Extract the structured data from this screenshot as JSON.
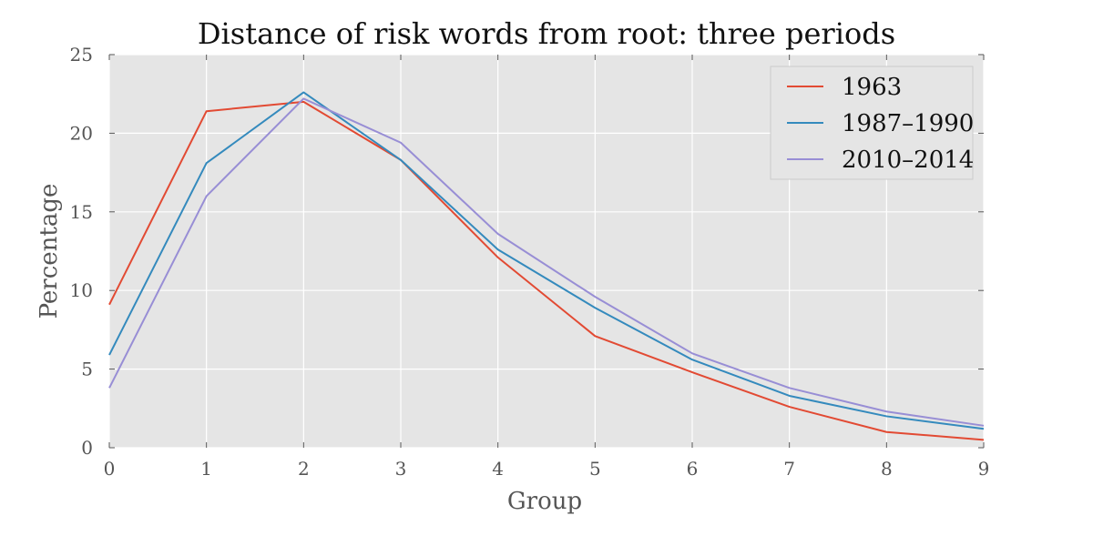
{
  "chart_data": {
    "type": "line",
    "title": "Distance of risk words from root: three periods",
    "xlabel": "Group",
    "ylabel": "Percentage",
    "x": [
      0,
      1,
      2,
      3,
      4,
      5,
      6,
      7,
      8,
      9
    ],
    "xlim": [
      0,
      9
    ],
    "ylim": [
      0,
      25
    ],
    "x_ticks": [
      "0",
      "1",
      "2",
      "3",
      "4",
      "5",
      "6",
      "7",
      "8",
      "9"
    ],
    "y_ticks": [
      "0",
      "5",
      "10",
      "15",
      "20",
      "25"
    ],
    "grid": true,
    "legend_position": "top-right",
    "background_color": "#e5e5e5",
    "series": [
      {
        "name": "1963",
        "color": "#e24a33",
        "values": [
          9.1,
          21.4,
          22.0,
          18.3,
          12.1,
          7.1,
          4.8,
          2.6,
          1.0,
          0.5
        ]
      },
      {
        "name": "1987–1990",
        "color": "#348abd",
        "values": [
          5.9,
          18.1,
          22.6,
          18.3,
          12.6,
          8.9,
          5.6,
          3.3,
          2.0,
          1.2
        ]
      },
      {
        "name": "2010–2014",
        "color": "#988ed5",
        "values": [
          3.8,
          16.0,
          22.2,
          19.4,
          13.6,
          9.6,
          6.0,
          3.8,
          2.3,
          1.4
        ]
      }
    ]
  }
}
